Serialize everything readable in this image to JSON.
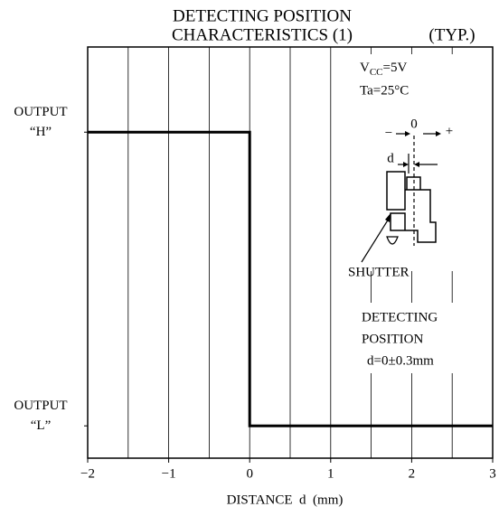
{
  "chart_data": {
    "type": "line",
    "title": [
      "DETECTING POSITION",
      "CHARACTERISTICS (1)"
    ],
    "subtitle": "(TYP.)",
    "xlabel": "DISTANCE  d  (mm)",
    "x": [
      -2,
      0,
      0,
      3
    ],
    "series": [
      {
        "color": "#000000",
        "values": [
          1,
          1,
          0,
          0
        ]
      }
    ],
    "xlim": [
      -2,
      3
    ],
    "xticks": [
      {
        "value": -2,
        "label": "−2"
      },
      {
        "value": -1,
        "label": "−1"
      },
      0,
      1,
      2,
      3
    ],
    "xgrid": [
      -1.5,
      -1,
      -0.5,
      0,
      0.5,
      1,
      1.5,
      2,
      2.5
    ],
    "ylim": [
      -0.11,
      1.29
    ],
    "yticks": [
      {
        "value": 1,
        "label": "OUTPUT\n“H”"
      },
      {
        "value": 0,
        "label": "OUTPUT\n“L”"
      }
    ],
    "grid": true,
    "conditions": {
      "vcc": {
        "base": "V",
        "sub": "CC",
        "rest": "=5V"
      },
      "ta": "Ta=25°C"
    },
    "inset": {
      "minus": "−",
      "zero": "0",
      "plus": "+",
      "d": "d",
      "shutter": "SHUTTER"
    },
    "annotation": [
      "DETECTING",
      "POSITION",
      "d=0±0.3mm"
    ]
  }
}
